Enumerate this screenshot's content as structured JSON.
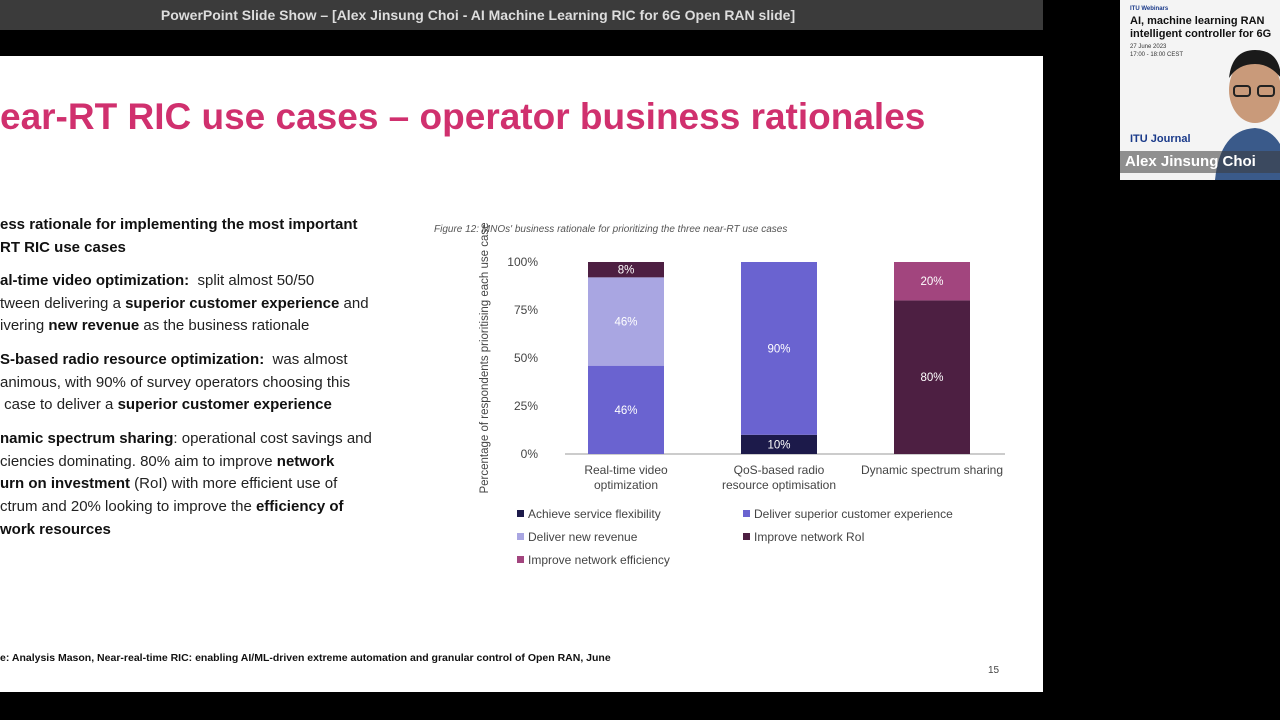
{
  "window": {
    "title": "PowerPoint Slide Show – [Alex Jinsung Choi - AI Machine Learning RIC for 6G Open RAN slide]"
  },
  "slide": {
    "title": "ear-RT RIC use cases – operator business rationales",
    "bullets": [
      {
        "lines": [
          [
            {
              "text": "ess rationale for implementing the most important",
              "bold": true
            }
          ],
          [
            {
              "text": "RT RIC use cases",
              "bold": true
            }
          ]
        ]
      },
      {
        "lines": [
          [
            {
              "text": "al-time video optimization:",
              "bold": true
            },
            {
              "text": "  split almost 50/50",
              "bold": false
            }
          ],
          [
            {
              "text": "tween delivering a ",
              "bold": false
            },
            {
              "text": "superior customer experience",
              "bold": true
            },
            {
              "text": " and",
              "bold": false
            }
          ],
          [
            {
              "text": "ivering ",
              "bold": false
            },
            {
              "text": "new revenue",
              "bold": true
            },
            {
              "text": " as the business rationale",
              "bold": false
            }
          ]
        ]
      },
      {
        "lines": [
          [
            {
              "text": "S-based radio resource optimization:",
              "bold": true
            },
            {
              "text": "  was almost",
              "bold": false
            }
          ],
          [
            {
              "text": "animous, with 90% of survey operators choosing this",
              "bold": false
            }
          ],
          [
            {
              "text": " case to deliver a ",
              "bold": false
            },
            {
              "text": "superior customer experience",
              "bold": true
            }
          ]
        ]
      },
      {
        "lines": [
          [
            {
              "text": "namic spectrum sharing",
              "bold": true
            },
            {
              "text": ": operational cost savings and",
              "bold": false
            }
          ],
          [
            {
              "text": "ciencies dominating. 80% aim to improve ",
              "bold": false
            },
            {
              "text": "network",
              "bold": true
            }
          ],
          [
            {
              "text": "urn on investment",
              "bold": true
            },
            {
              "text": " (RoI) with more efficient use of",
              "bold": false
            }
          ],
          [
            {
              "text": "ctrum and 20% looking to improve the ",
              "bold": false
            },
            {
              "text": "efficiency of",
              "bold": true
            }
          ],
          [
            {
              "text": "work resources",
              "bold": true
            }
          ]
        ]
      }
    ],
    "source": "e: Analysis Mason, Near-real-time RIC: enabling AI/ML-driven extreme automation and granular control of Open RAN, June",
    "page_number": "15"
  },
  "chart_data": {
    "type": "stacked_bar",
    "title": "Figure 12: MNOs' business rationale for prioritizing the three near-RT use cases",
    "y_label": "Percentage of respondents prioritising each use case",
    "categories": [
      "Real-time video optimization",
      "QoS-based radio resource optimisation",
      "Dynamic spectrum sharing"
    ],
    "series": [
      {
        "name": "Achieve service flexibility",
        "color": "#1c1a4a",
        "values": [
          null,
          10,
          null
        ],
        "value_labels": [
          null,
          "10%",
          null
        ]
      },
      {
        "name": "Deliver superior customer experience",
        "color": "#6a63d0",
        "values": [
          46,
          90,
          null
        ],
        "value_labels": [
          "46%",
          "90%",
          null
        ]
      },
      {
        "name": "Deliver new revenue",
        "color": "#a9a6e2",
        "values": [
          46,
          null,
          null
        ],
        "value_labels": [
          "46%",
          null,
          null
        ]
      },
      {
        "name": "Improve network RoI",
        "color": "#4d1f42",
        "values": [
          8,
          null,
          80
        ],
        "value_labels": [
          "8%",
          null,
          "80%"
        ]
      },
      {
        "name": "Improve network efficiency",
        "color": "#a2457e",
        "values": [
          null,
          null,
          20
        ],
        "value_labels": [
          null,
          null,
          "20%"
        ]
      }
    ],
    "ylim": [
      0,
      100
    ],
    "yticks": [
      {
        "value": 0,
        "label": "0%"
      },
      {
        "value": 25,
        "label": "25%"
      },
      {
        "value": 50,
        "label": "50%"
      },
      {
        "value": 75,
        "label": "75%"
      },
      {
        "value": 100,
        "label": "100%"
      }
    ]
  },
  "webcam": {
    "series_name": "ITU Webinars",
    "title": "AI, machine learning RAN intelligent controller for 6G",
    "date": "27 June 2023",
    "time": "17:00 - 18:00 CEST",
    "partner": "ITU Journal",
    "speaker": "Alex Jinsung Choi"
  }
}
